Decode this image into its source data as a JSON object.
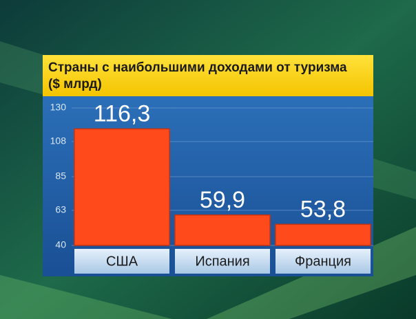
{
  "chart_data": {
    "type": "bar",
    "title": "Страны с наибольшими доходами от туризма",
    "subtitle": "($ млрд)",
    "categories": [
      "США",
      "Испания",
      "Франция"
    ],
    "values": [
      116.3,
      59.9,
      53.8
    ],
    "value_labels": [
      "116,3",
      "59,9",
      "53,8"
    ],
    "color": "#ff4b1c",
    "ylim": [
      40,
      130
    ],
    "yticks": [
      130,
      108,
      85,
      63,
      40
    ],
    "grid": true
  }
}
